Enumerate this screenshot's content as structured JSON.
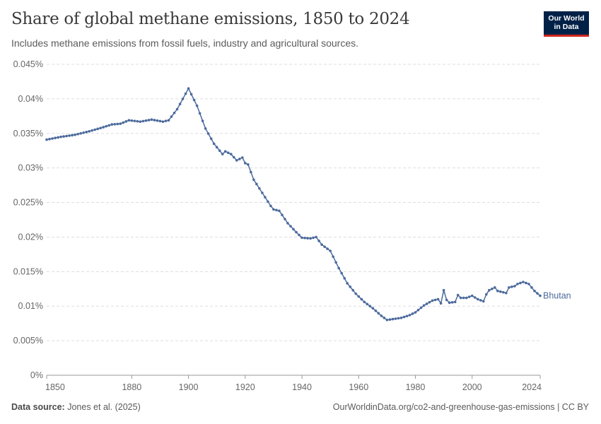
{
  "header": {
    "title": "Share of global methane emissions, 1850 to 2024",
    "subtitle": "Includes methane emissions from fossil fuels, industry and agricultural sources."
  },
  "logo": {
    "line1": "Our World",
    "line2": "in Data"
  },
  "footer": {
    "source_label": "Data source:",
    "source_text": "Jones et al. (2025)",
    "url_text": "OurWorldinData.org/co2-and-greenhouse-gas-emissions | CC BY"
  },
  "colors": {
    "series": "#4c6a9c",
    "grid": "#dddddd",
    "brand": "#002147",
    "brand_accent": "#ce261e"
  },
  "chart_data": {
    "type": "line",
    "title": "Share of global methane emissions, 1850 to 2024",
    "xlabel": "",
    "ylabel": "",
    "xlim": [
      1850,
      2024
    ],
    "ylim": [
      0,
      0.045
    ],
    "x_ticks": [
      1850,
      1880,
      1900,
      1920,
      1940,
      1960,
      1980,
      2000,
      2024
    ],
    "x_tick_labels": [
      "1850",
      "1880",
      "1900",
      "1920",
      "1940",
      "1960",
      "1980",
      "2000",
      "2024"
    ],
    "y_ticks": [
      0,
      0.005,
      0.01,
      0.015,
      0.02,
      0.025,
      0.03,
      0.035,
      0.04,
      0.045
    ],
    "y_tick_labels": [
      "0%",
      "0.005%",
      "0.01%",
      "0.015%",
      "0.02%",
      "0.025%",
      "0.03%",
      "0.035%",
      "0.04%",
      "0.045%"
    ],
    "grid": true,
    "series": [
      {
        "name": "Bhutan",
        "keyframes": [
          [
            1850,
            0.0341
          ],
          [
            1855,
            0.0345
          ],
          [
            1860,
            0.0348
          ],
          [
            1865,
            0.0353
          ],
          [
            1870,
            0.0359
          ],
          [
            1873,
            0.0363
          ],
          [
            1876,
            0.0364
          ],
          [
            1879,
            0.0369
          ],
          [
            1883,
            0.0367
          ],
          [
            1887,
            0.037
          ],
          [
            1891,
            0.0367
          ],
          [
            1893,
            0.0369
          ],
          [
            1896,
            0.0385
          ],
          [
            1900,
            0.0415
          ],
          [
            1903,
            0.039
          ],
          [
            1906,
            0.0357
          ],
          [
            1909,
            0.0335
          ],
          [
            1912,
            0.032
          ],
          [
            1913,
            0.0324
          ],
          [
            1915,
            0.032
          ],
          [
            1917,
            0.0311
          ],
          [
            1919,
            0.0315
          ],
          [
            1920,
            0.0307
          ],
          [
            1921,
            0.0305
          ],
          [
            1923,
            0.0283
          ],
          [
            1926,
            0.0264
          ],
          [
            1929,
            0.0245
          ],
          [
            1930,
            0.024
          ],
          [
            1932,
            0.0238
          ],
          [
            1935,
            0.022
          ],
          [
            1938,
            0.0207
          ],
          [
            1940,
            0.0199
          ],
          [
            1943,
            0.0198
          ],
          [
            1945,
            0.02
          ],
          [
            1947,
            0.0189
          ],
          [
            1950,
            0.018
          ],
          [
            1953,
            0.0155
          ],
          [
            1956,
            0.0133
          ],
          [
            1959,
            0.0118
          ],
          [
            1962,
            0.0106
          ],
          [
            1965,
            0.0097
          ],
          [
            1968,
            0.0086
          ],
          [
            1970,
            0.008
          ],
          [
            1975,
            0.0083
          ],
          [
            1978,
            0.0087
          ],
          [
            1980,
            0.0091
          ],
          [
            1983,
            0.0101
          ],
          [
            1986,
            0.0108
          ],
          [
            1988,
            0.011
          ],
          [
            1989,
            0.0104
          ],
          [
            1990,
            0.0123
          ],
          [
            1991,
            0.0109
          ],
          [
            1992,
            0.0105
          ],
          [
            1994,
            0.0106
          ],
          [
            1995,
            0.0116
          ],
          [
            1996,
            0.0112
          ],
          [
            1998,
            0.0112
          ],
          [
            2000,
            0.0115
          ],
          [
            2002,
            0.011
          ],
          [
            2004,
            0.0107
          ],
          [
            2005,
            0.0117
          ],
          [
            2006,
            0.0123
          ],
          [
            2008,
            0.0127
          ],
          [
            2009,
            0.0122
          ],
          [
            2012,
            0.0119
          ],
          [
            2013,
            0.0127
          ],
          [
            2015,
            0.0129
          ],
          [
            2016,
            0.0132
          ],
          [
            2018,
            0.0135
          ],
          [
            2020,
            0.0132
          ],
          [
            2022,
            0.0122
          ],
          [
            2024,
            0.0115
          ]
        ]
      }
    ]
  }
}
